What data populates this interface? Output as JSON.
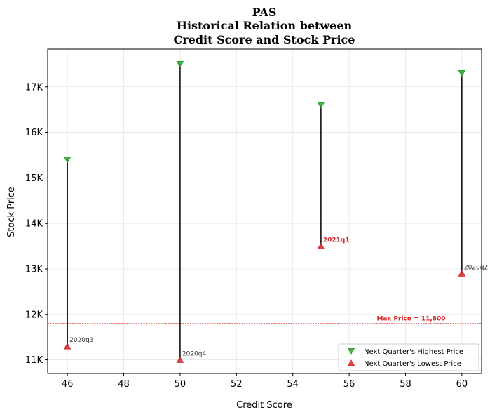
{
  "chart_data": {
    "type": "scatter",
    "title_lines": [
      "PAS",
      "Historical Relation between",
      "Credit Score and Stock Price"
    ],
    "xlabel": "Credit Score",
    "ylabel": "Stock Price",
    "xlim": [
      45.3,
      60.7
    ],
    "ylim": [
      10700,
      17830
    ],
    "x_ticks": [
      46,
      48,
      50,
      52,
      54,
      56,
      58,
      60
    ],
    "y_ticks": [
      11000,
      12000,
      13000,
      14000,
      15000,
      16000,
      17000
    ],
    "y_tick_labels": [
      "11K",
      "12K",
      "13K",
      "14K",
      "15K",
      "16K",
      "17K"
    ],
    "grid": true,
    "legend_position": "lower-right",
    "series": [
      {
        "name": "Next Quarter's Highest Price",
        "marker": "triangle-down",
        "color": "#2ca02c"
      },
      {
        "name": "Next Quarter's Lowest Price",
        "marker": "triangle-up",
        "color": "#d62728"
      }
    ],
    "points": [
      {
        "x": 46,
        "high": 15400,
        "low": 11300,
        "label": "2020q3",
        "highlight": false
      },
      {
        "x": 50,
        "high": 17500,
        "low": 11000,
        "label": "2020q4",
        "highlight": false
      },
      {
        "x": 55,
        "high": 16600,
        "low": 13500,
        "label": "2021q1",
        "highlight": true
      },
      {
        "x": 60,
        "high": 17300,
        "low": 12900,
        "label": "2020q2",
        "highlight": false
      }
    ],
    "reference_line": {
      "y": 11800,
      "label": "Max Price = 11,800",
      "color": "#d62728"
    }
  }
}
